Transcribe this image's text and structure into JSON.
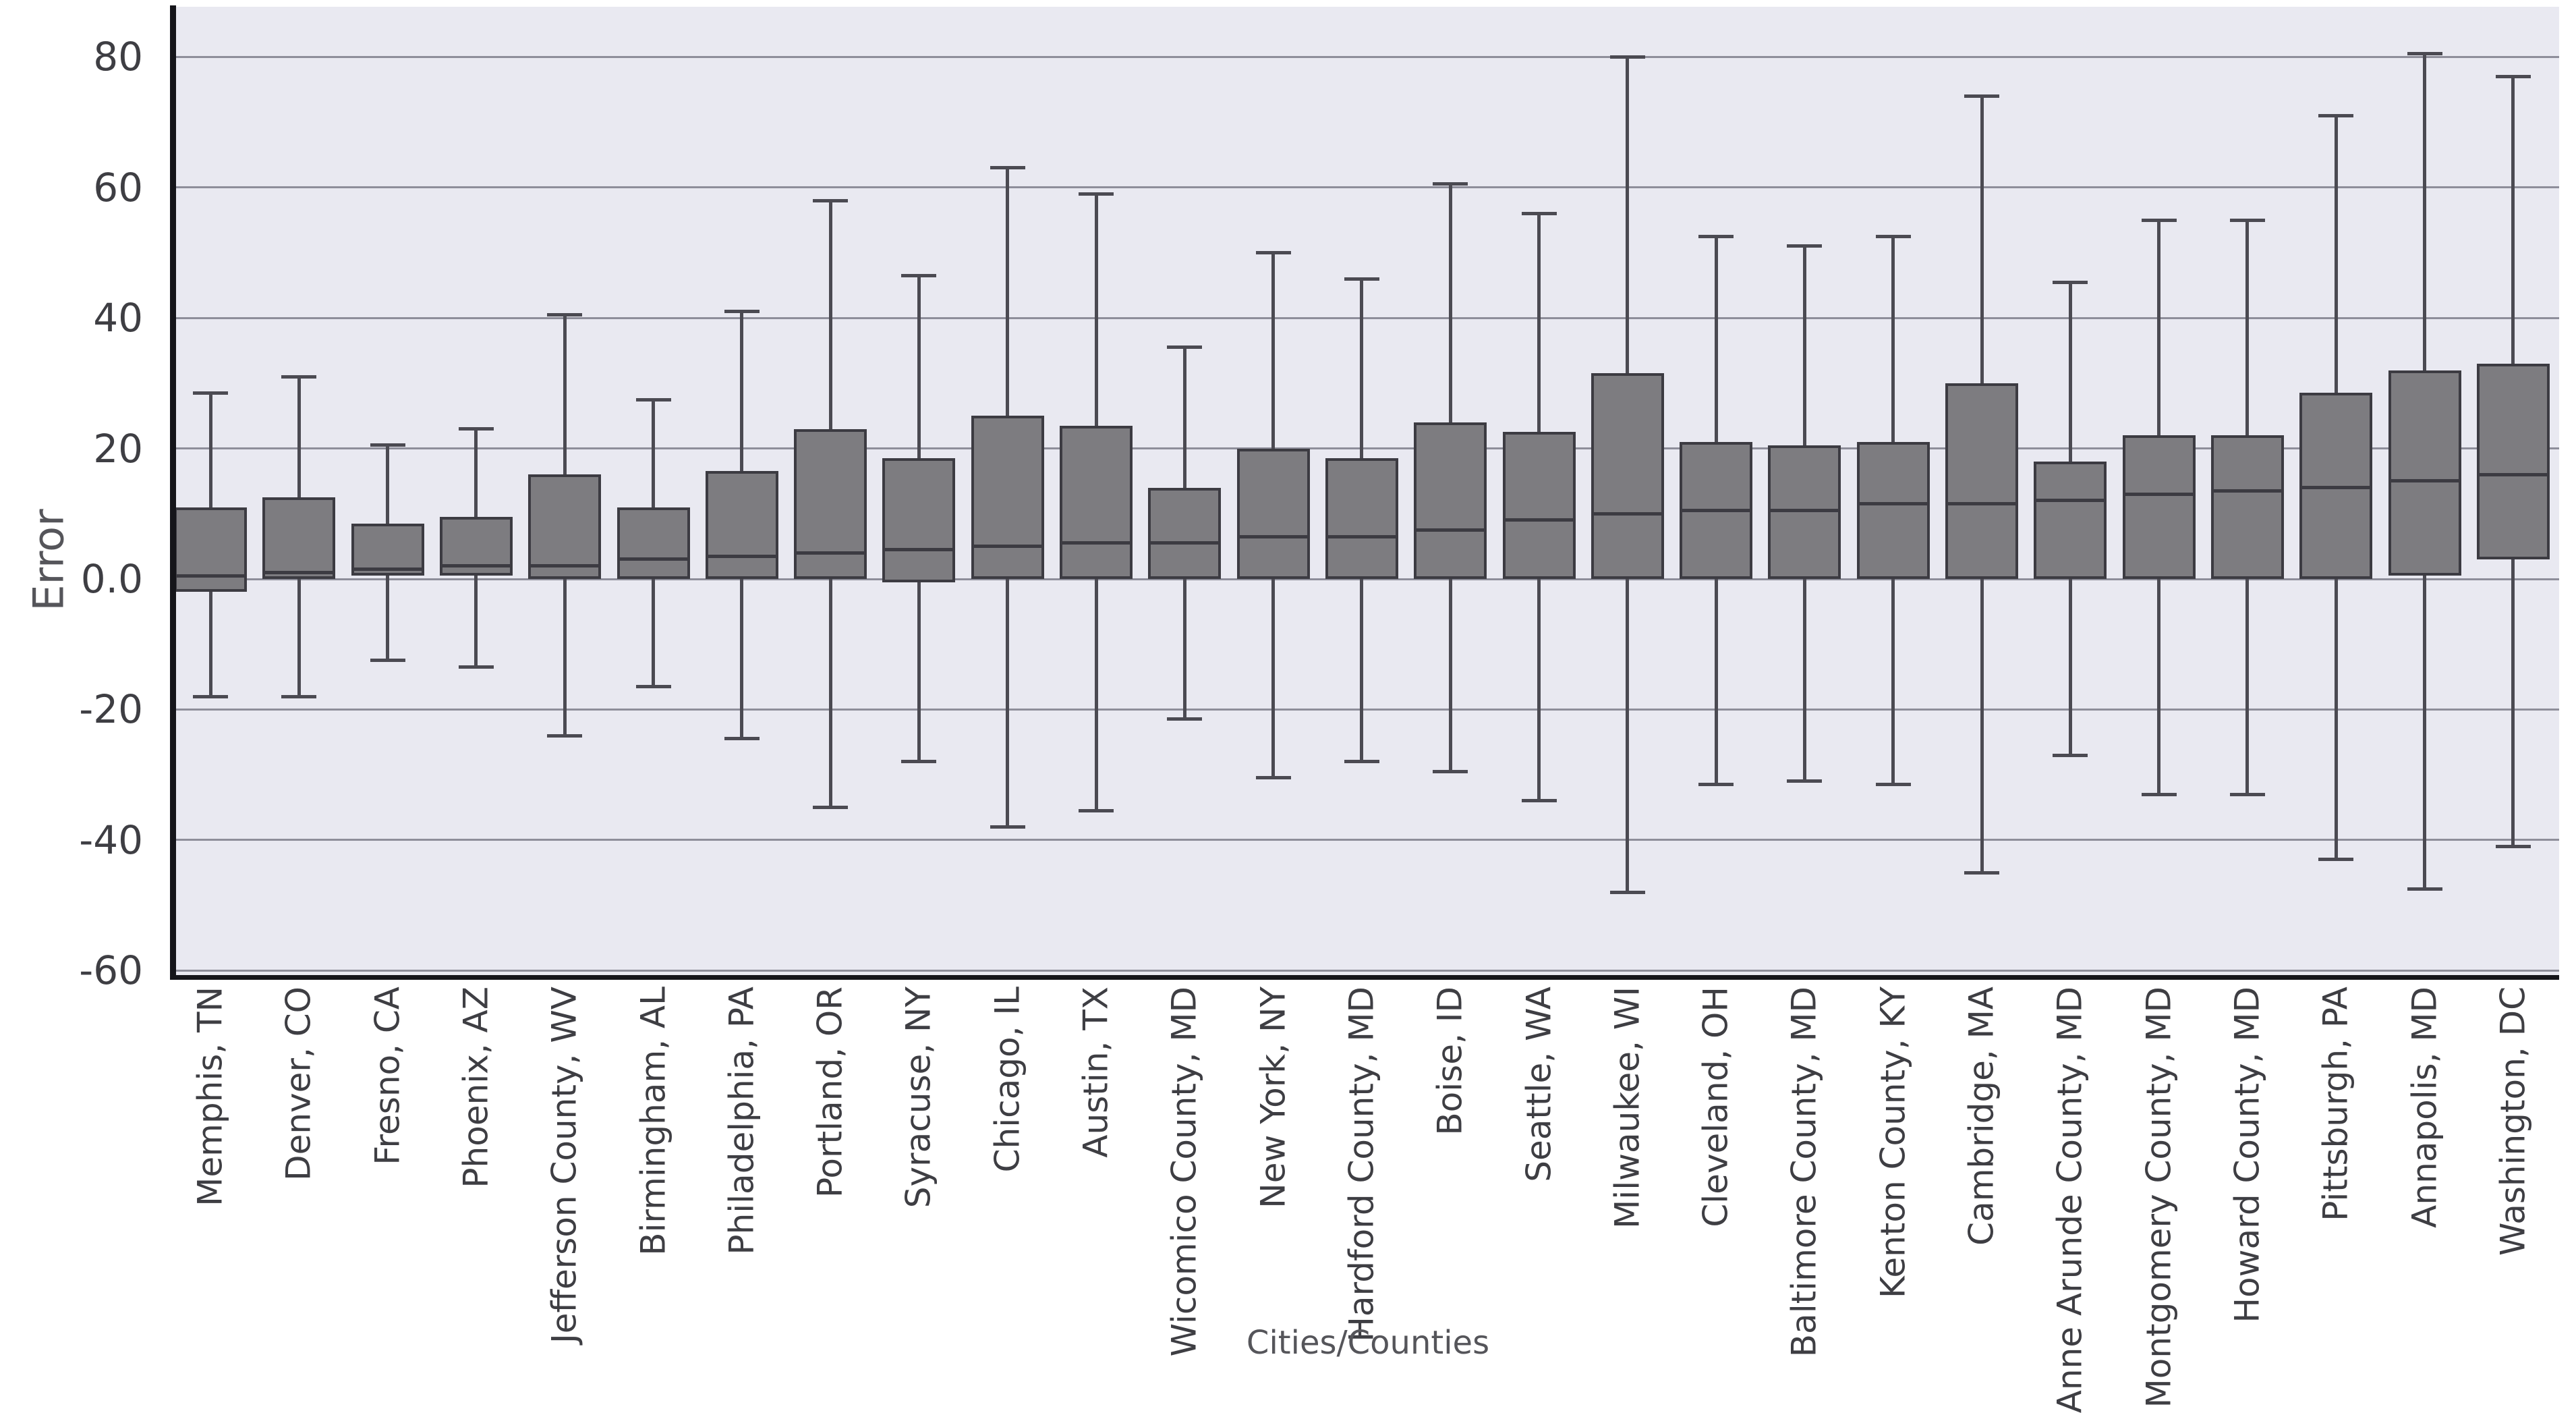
{
  "chart_data": {
    "type": "box",
    "title": "",
    "xlabel": "Cities/Counties",
    "ylabel": "Error",
    "ylim": [
      -61,
      88
    ],
    "grid": "horizontal",
    "legend": "none",
    "y_ticks": {
      "values": [
        80,
        60,
        40,
        20,
        0,
        -20,
        -40,
        -60
      ],
      "labels": [
        "80",
        "60",
        "40",
        "20",
        "0.0",
        "-20",
        "-40",
        "-60"
      ]
    },
    "categories": [
      "Memphis, TN",
      "Denver, CO",
      "Fresno, CA",
      "Phoenix, AZ",
      "Jefferson County, WV",
      "Birmingham, AL",
      "Philadelphia, PA",
      "Portland, OR",
      "Syracuse, NY",
      "Chicago, IL",
      "Austin, TX",
      "Wicomico County, MD",
      "New York, NY",
      "Hardford County, MD",
      "Boise, ID",
      "Seattle, WA",
      "Milwaukee, WI",
      "Cleveland, OH",
      "Baltimore County, MD",
      "Kenton County, KY",
      "Cambridge, MA",
      "Anne Arunde County, MD",
      "Montgomery County, MD",
      "Howard County, MD",
      "Pittsburgh, PA",
      "Annapolis, MD",
      "Washington, DC"
    ],
    "boxes": [
      {
        "label": "Memphis, TN",
        "low": -18,
        "q1": -2,
        "median": 0.5,
        "q3": 11,
        "high": 28.5
      },
      {
        "label": "Denver, CO",
        "low": -18,
        "q1": 0,
        "median": 1,
        "q3": 12.5,
        "high": 31
      },
      {
        "label": "Fresno, CA",
        "low": -12.5,
        "q1": 0.5,
        "median": 1.5,
        "q3": 8.5,
        "high": 20.5
      },
      {
        "label": "Phoenix, AZ",
        "low": -13.5,
        "q1": 0.5,
        "median": 2,
        "q3": 9.5,
        "high": 23
      },
      {
        "label": "Jefferson County, WV",
        "low": -24,
        "q1": 0,
        "median": 2,
        "q3": 16,
        "high": 40.5
      },
      {
        "label": "Birmingham, AL",
        "low": -16.5,
        "q1": 0,
        "median": 3,
        "q3": 11,
        "high": 27.5
      },
      {
        "label": "Philadelphia, PA",
        "low": -24.5,
        "q1": 0,
        "median": 3.5,
        "q3": 16.5,
        "high": 41
      },
      {
        "label": "Portland, OR",
        "low": -35,
        "q1": 0,
        "median": 4,
        "q3": 23,
        "high": 58
      },
      {
        "label": "Syracuse, NY",
        "low": -28,
        "q1": -0.5,
        "median": 4.5,
        "q3": 18.5,
        "high": 46.5
      },
      {
        "label": "Chicago, IL",
        "low": -38,
        "q1": 0,
        "median": 5,
        "q3": 25,
        "high": 63
      },
      {
        "label": "Austin, TX",
        "low": -35.5,
        "q1": 0,
        "median": 5.5,
        "q3": 23.5,
        "high": 59
      },
      {
        "label": "Wicomico County, MD",
        "low": -21.5,
        "q1": 0,
        "median": 5.5,
        "q3": 14,
        "high": 35.5
      },
      {
        "label": "New York, NY",
        "low": -30.5,
        "q1": 0,
        "median": 6.5,
        "q3": 20,
        "high": 50
      },
      {
        "label": "Hardford County, MD",
        "low": -28,
        "q1": 0,
        "median": 6.5,
        "q3": 18.5,
        "high": 46
      },
      {
        "label": "Boise, ID",
        "low": -29.5,
        "q1": 0,
        "median": 7.5,
        "q3": 24,
        "high": 60.5
      },
      {
        "label": "Seattle, WA",
        "low": -34,
        "q1": 0,
        "median": 9,
        "q3": 22.5,
        "high": 56
      },
      {
        "label": "Milwaukee, WI",
        "low": -48,
        "q1": 0,
        "median": 10,
        "q3": 31.5,
        "high": 80
      },
      {
        "label": "Cleveland, OH",
        "low": -31.5,
        "q1": 0,
        "median": 10.5,
        "q3": 21,
        "high": 52.5
      },
      {
        "label": "Baltimore County, MD",
        "low": -31,
        "q1": 0,
        "median": 10.5,
        "q3": 20.5,
        "high": 51
      },
      {
        "label": "Kenton County, KY",
        "low": -31.5,
        "q1": 0,
        "median": 11.5,
        "q3": 21,
        "high": 52.5
      },
      {
        "label": "Cambridge, MA",
        "low": -45,
        "q1": 0,
        "median": 11.5,
        "q3": 30,
        "high": 74
      },
      {
        "label": "Anne Arunde County, MD",
        "low": -27,
        "q1": 0,
        "median": 12,
        "q3": 18,
        "high": 45.5
      },
      {
        "label": "Montgomery County, MD",
        "low": -33,
        "q1": 0,
        "median": 13,
        "q3": 22,
        "high": 55
      },
      {
        "label": "Howard County, MD",
        "low": -33,
        "q1": 0,
        "median": 13.5,
        "q3": 22,
        "high": 55
      },
      {
        "label": "Pittsburgh, PA",
        "low": -43,
        "q1": 0,
        "median": 14,
        "q3": 28.5,
        "high": 71
      },
      {
        "label": "Annapolis, MD",
        "low": -47.5,
        "q1": 0.5,
        "median": 15,
        "q3": 32,
        "high": 80.5
      },
      {
        "label": "Washington, DC",
        "low": -41,
        "q1": 3,
        "median": 16,
        "q3": 33,
        "high": 77
      }
    ]
  },
  "colors": {
    "figure_bg": "#ffffff",
    "plot_bg": "#e9e9f1",
    "gridline": "#8e8e9a",
    "box_fill": "#7d7c80",
    "box_edge": "#3c3b42",
    "whisker": "#4b4a52",
    "spine": "#15151a",
    "tick_label": "#3e3e43",
    "axis_label": "#55555a"
  }
}
